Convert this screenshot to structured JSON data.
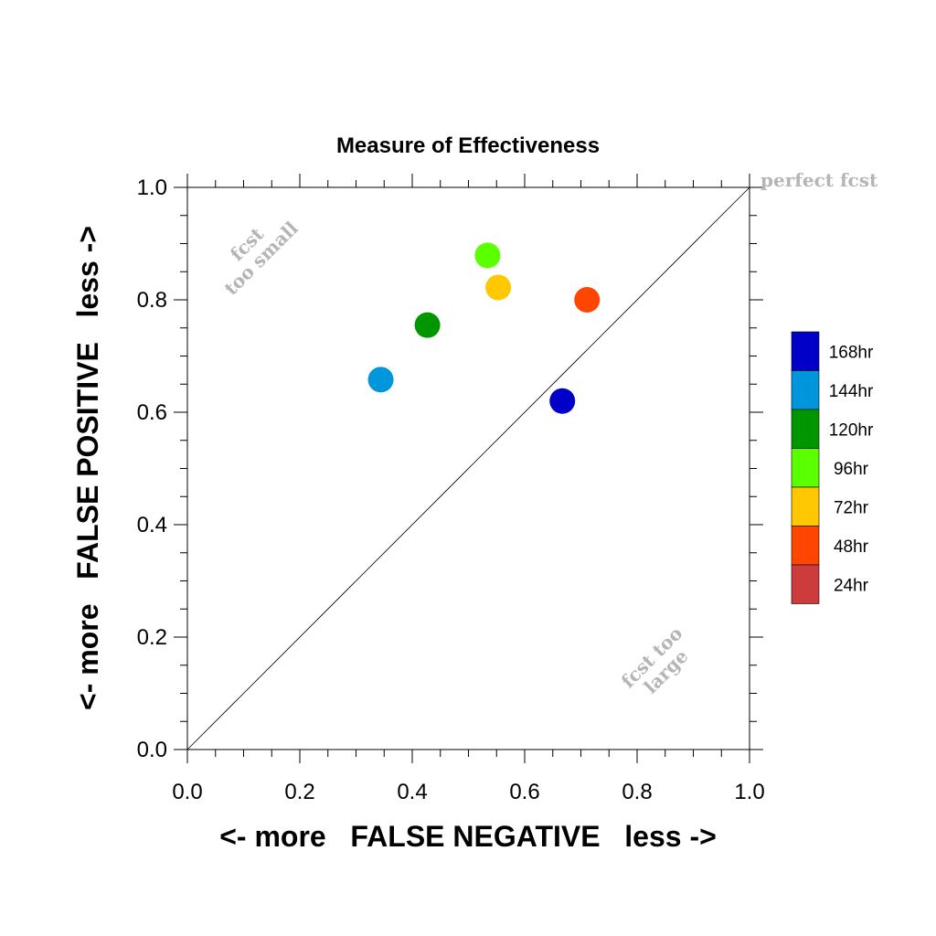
{
  "chart_data": {
    "type": "scatter",
    "title": "Measure of Effectiveness",
    "xlabel": "<- more   FALSE NEGATIVE   less ->",
    "ylabel": "<- more   FALSE POSITIVE   less ->",
    "xlim": [
      0.0,
      1.0
    ],
    "ylim": [
      0.0,
      1.0
    ],
    "xticks": [
      "0.0",
      "0.2",
      "0.4",
      "0.6",
      "0.8",
      "1.0"
    ],
    "yticks": [
      "0.0",
      "0.2",
      "0.4",
      "0.6",
      "0.8",
      "1.0"
    ],
    "diagonal": true,
    "grid": false,
    "legend_placement": "right",
    "annotations": {
      "perfect": "perfect fcst",
      "small_line1": "fcst",
      "small_line2": "too small",
      "large_line1": "fcst too",
      "large_line2": "large"
    },
    "legend": [
      {
        "label": "168hr",
        "color": "#0000c8"
      },
      {
        "label": "144hr",
        "color": "#0096dc"
      },
      {
        "label": "120hr",
        "color": "#009600"
      },
      {
        "label": "96hr",
        "color": "#5aff00"
      },
      {
        "label": "72hr",
        "color": "#ffc800"
      },
      {
        "label": "48hr",
        "color": "#ff4600"
      },
      {
        "label": "24hr",
        "color": "#cd3c3c"
      }
    ],
    "points": [
      {
        "series": "168hr",
        "x": 0.667,
        "y": 0.62,
        "color": "#0000c8"
      },
      {
        "series": "144hr",
        "x": 0.344,
        "y": 0.658,
        "color": "#0096dc"
      },
      {
        "series": "120hr",
        "x": 0.427,
        "y": 0.755,
        "color": "#009600"
      },
      {
        "series": "96hr",
        "x": 0.534,
        "y": 0.879,
        "color": "#5aff00"
      },
      {
        "series": "72hr",
        "x": 0.553,
        "y": 0.822,
        "color": "#ffc800"
      },
      {
        "series": "48hr",
        "x": 0.711,
        "y": 0.8,
        "color": "#ff4600"
      }
    ]
  }
}
